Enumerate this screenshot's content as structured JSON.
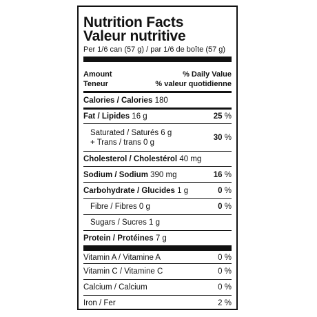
{
  "title_en": "Nutrition Facts",
  "title_fr": "Valeur nutritive",
  "serving": "Per 1/6 can (57 g) / par 1/6 de boîte (57 g)",
  "header": {
    "amount_en": "Amount",
    "amount_fr": "Teneur",
    "dv_en": "% Daily Value",
    "dv_fr": "% valeur quotidienne"
  },
  "calories": {
    "label": "Calories / Calories",
    "value": "180"
  },
  "fat": {
    "label": "Fat / Lipides",
    "amount": "16 g",
    "dv": "25",
    "unit": "%"
  },
  "saturated": {
    "line1": "Saturated / Saturés 6 g",
    "line2": "+ Trans / trans 0 g",
    "dv": "30",
    "unit": "%"
  },
  "cholesterol": {
    "label": "Cholesterol / Cholestérol",
    "amount": "40 mg"
  },
  "sodium": {
    "label": "Sodium / Sodium",
    "amount": "390 mg",
    "dv": "16",
    "unit": "%"
  },
  "carbohydrate": {
    "label": "Carbohydrate / Glucides",
    "amount": "1 g",
    "dv": "0",
    "unit": "%"
  },
  "fibre": {
    "label": "Fibre / Fibres 0 g",
    "dv": "0",
    "unit": "%"
  },
  "sugars": {
    "label": "Sugars / Sucres 1 g"
  },
  "protein": {
    "label": "Protein / Protéines",
    "amount": "7 g"
  },
  "vitamins": [
    {
      "label": "Vitamin A / Vitamine A",
      "dv": "0 %"
    },
    {
      "label": "Vitamin C / Vitamine C",
      "dv": "0 %"
    },
    {
      "label": "Calcium / Calcium",
      "dv": "0 %"
    },
    {
      "label": "Iron / Fer",
      "dv": "2 %"
    }
  ]
}
